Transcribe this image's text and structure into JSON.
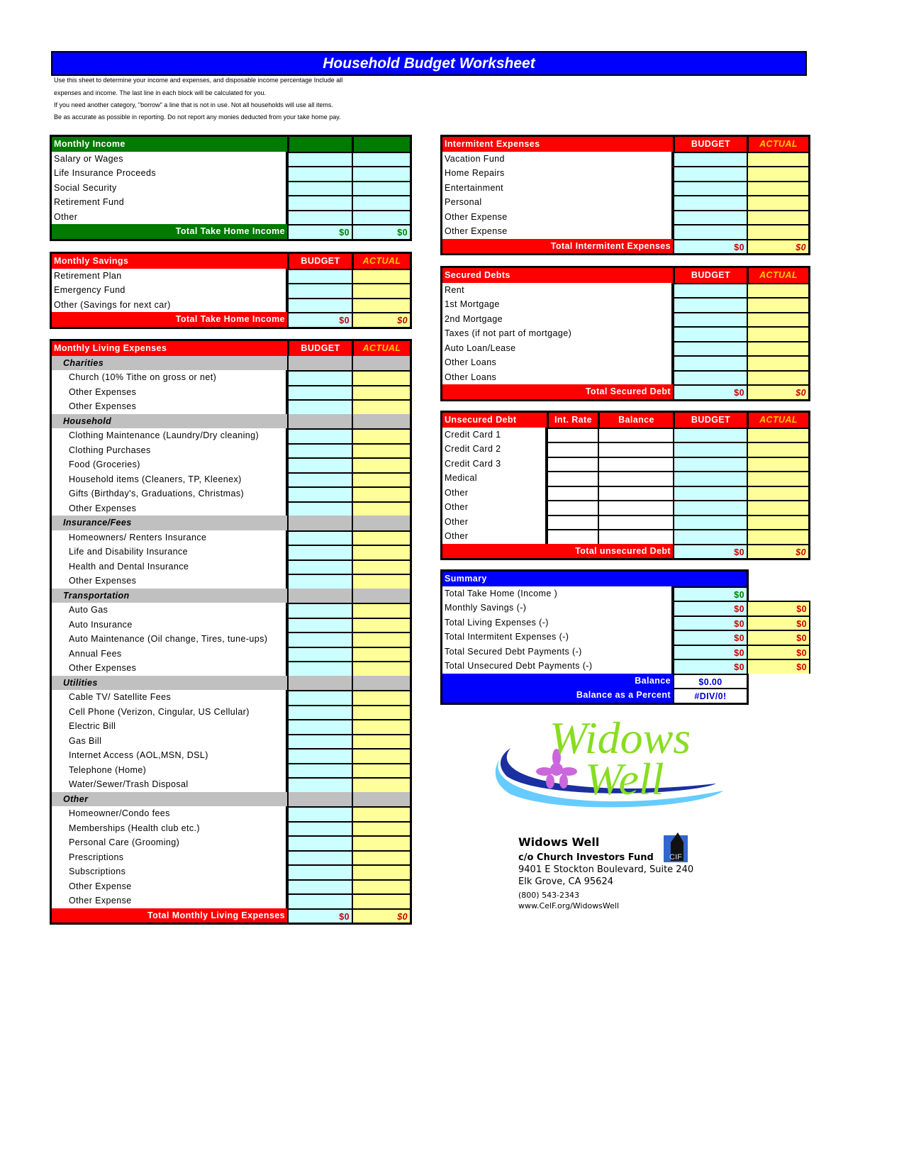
{
  "title": "Household Budget Worksheet",
  "intro": [
    "Use this sheet to determine your income and expenses, and disposable income percentage Include all",
    "expenses and income. The last line in each block will be calculated for you.",
    "If you need another category, \"borrow\" a line that is not in use. Not all households will use all items.",
    "Be as accurate as possible in reporting. Do not report any monies deducted from your take home pay."
  ],
  "colors": {
    "title_bg": "#0000ff",
    "income_header": "#007a00",
    "expense_header": "#ff0000",
    "budget_cell": "#ccffff",
    "actual_cell": "#ffff99",
    "category_bg": "#c0c0c0"
  },
  "sections": [
    {
      "id": "income",
      "header": "Monthly Income",
      "budget_label": "",
      "actual_label": "",
      "color": "#007a00",
      "rows": [
        "Salary or Wages",
        "Life Insurance Proceeds",
        "Social Security",
        "Retirement Fund",
        "Other"
      ],
      "total": {
        "label": "Total Take Home Income",
        "budget": "$0",
        "actual": "$0"
      }
    },
    {
      "id": "savings",
      "header": "Monthly Savings",
      "budget_label": "BUDGET",
      "actual_label": "ACTUAL",
      "color": "#ff0000",
      "rows": [
        "Retirement Plan",
        "Emergency Fund",
        "Other (Savings for next car)"
      ],
      "total": {
        "label": "Total Take Home Income",
        "budget": "$0",
        "actual": "$0"
      }
    },
    {
      "id": "living",
      "header": "Monthly Living Expenses",
      "budget_label": "BUDGET",
      "actual_label": "ACTUAL",
      "color": "#ff0000",
      "rows": [
        {
          "cat": "Charities"
        },
        "Church (10% Tithe on gross or net)",
        "Other Expenses",
        "Other Expenses",
        {
          "cat": "Household"
        },
        "Clothing Maintenance (Laundry/Dry cleaning)",
        "Clothing Purchases",
        "Food (Groceries)",
        "Household items (Cleaners, TP, Kleenex)",
        "Gifts (Birthday's, Graduations, Christmas)",
        "Other Expenses",
        {
          "cat": "Insurance/Fees"
        },
        "Homeowners/ Renters Insurance",
        "Life and Disability Insurance",
        "Health and Dental Insurance",
        "Other Expenses",
        {
          "cat": "Transportation"
        },
        "Auto Gas",
        "Auto Insurance",
        "Auto Maintenance (Oil change, Tires, tune-ups)",
        "Annual Fees",
        "Other Expenses",
        {
          "cat": "Utilities"
        },
        "Cable TV/ Satellite Fees",
        "Cell Phone (Verizon, Cingular, US Cellular)",
        "Electric Bill",
        "Gas Bill",
        "Internet Access (AOL,MSN, DSL)",
        "Telephone (Home)",
        "Water/Sewer/Trash Disposal",
        {
          "cat": "Other"
        },
        "Homeowner/Condo fees",
        "Memberships (Health club etc.)",
        "Personal Care (Grooming)",
        "Prescriptions",
        "Subscriptions",
        "Other Expense",
        "Other Expense"
      ],
      "total": {
        "label": "Total Monthly Living Expenses",
        "budget": "$0",
        "actual": "$0"
      }
    },
    {
      "id": "intermittent",
      "header": "Intermitent Expenses",
      "budget_label": "BUDGET",
      "actual_label": "ACTUAL",
      "color": "#ff0000",
      "rows": [
        "Vacation Fund",
        "Home Repairs",
        "Entertainment",
        "Personal",
        "Other Expense",
        "Other Expense"
      ],
      "total": {
        "label": "Total Intermitent Expenses",
        "budget": "$0",
        "actual": "$0"
      }
    },
    {
      "id": "secured",
      "header": "Secured Debts",
      "budget_label": "BUDGET",
      "actual_label": "ACTUAL",
      "color": "#ff0000",
      "rows": [
        "Rent",
        "1st Mortgage",
        "2nd Mortgage",
        "Taxes (if not part of mortgage)",
        "Auto Loan/Lease",
        "Other Loans",
        "Other Loans"
      ],
      "total": {
        "label": "Total Secured Debt",
        "budget": "$0",
        "actual": "$0"
      }
    },
    {
      "id": "unsecured",
      "header": "Unsecured Debt",
      "rate_label": "Int. Rate",
      "balance_label": "Balance",
      "budget_label": "BUDGET",
      "actual_label": "ACTUAL",
      "color": "#ff0000",
      "rows": [
        "Credit Card 1",
        "Credit Card 2",
        "Credit Card 3",
        "Medical",
        "Other",
        "Other",
        "Other",
        "Other"
      ],
      "total": {
        "label": "Total unsecured Debt",
        "budget": "$0",
        "actual": "$0"
      }
    }
  ],
  "summary": {
    "header": "Summary",
    "color": "#0000ff",
    "rows": [
      {
        "label": "Total Take Home (Income )",
        "budget": "$0"
      },
      {
        "label": "Monthly Savings (-)",
        "budget": "$0",
        "actual": "$0"
      },
      {
        "label": "Total Living Expenses (-)",
        "budget": "$0",
        "actual": "$0"
      },
      {
        "label": "Total Intermitent Expenses (-)",
        "budget": "$0",
        "actual": "$0"
      },
      {
        "label": "Total Secured Debt Payments (-)",
        "budget": "$0",
        "actual": "$0"
      },
      {
        "label": "Total Unsecured Debt Payments (-)",
        "budget": "$0",
        "actual": "$0"
      }
    ],
    "balance_label": "Balance",
    "balance_value": "$0.00",
    "percent_label": "Balance as a Percent",
    "percent_value": "#DIV/0!"
  },
  "logo": {
    "text1": "Widows",
    "text2": "Well"
  },
  "address": {
    "org": "Widows Well",
    "care_of": "c/o Church Investors Fund",
    "street": "9401 E Stockton Boulevard, Suite 240",
    "city": "Elk Grove, CA 95624",
    "phone": "(800) 543-2343",
    "web": "www.CelF.org/WidowsWell",
    "badge": "CIF"
  }
}
